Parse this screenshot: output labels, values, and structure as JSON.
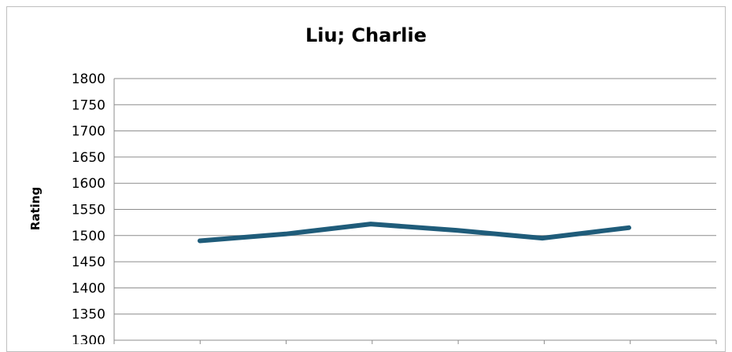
{
  "chart_data": {
    "type": "line",
    "title": "Liu; Charlie",
    "xlabel": "",
    "ylabel": "Rating",
    "ylim": [
      1300,
      1800
    ],
    "yticks": [
      1300,
      1350,
      1400,
      1450,
      1500,
      1550,
      1600,
      1650,
      1700,
      1750,
      1800
    ],
    "x": [
      1,
      2,
      3,
      4,
      5,
      6
    ],
    "series": [
      {
        "values": [
          1490,
          1503,
          1522,
          1510,
          1495,
          1515
        ]
      }
    ],
    "grid": true,
    "legend": "none",
    "line_color": "#1f5c7a"
  }
}
